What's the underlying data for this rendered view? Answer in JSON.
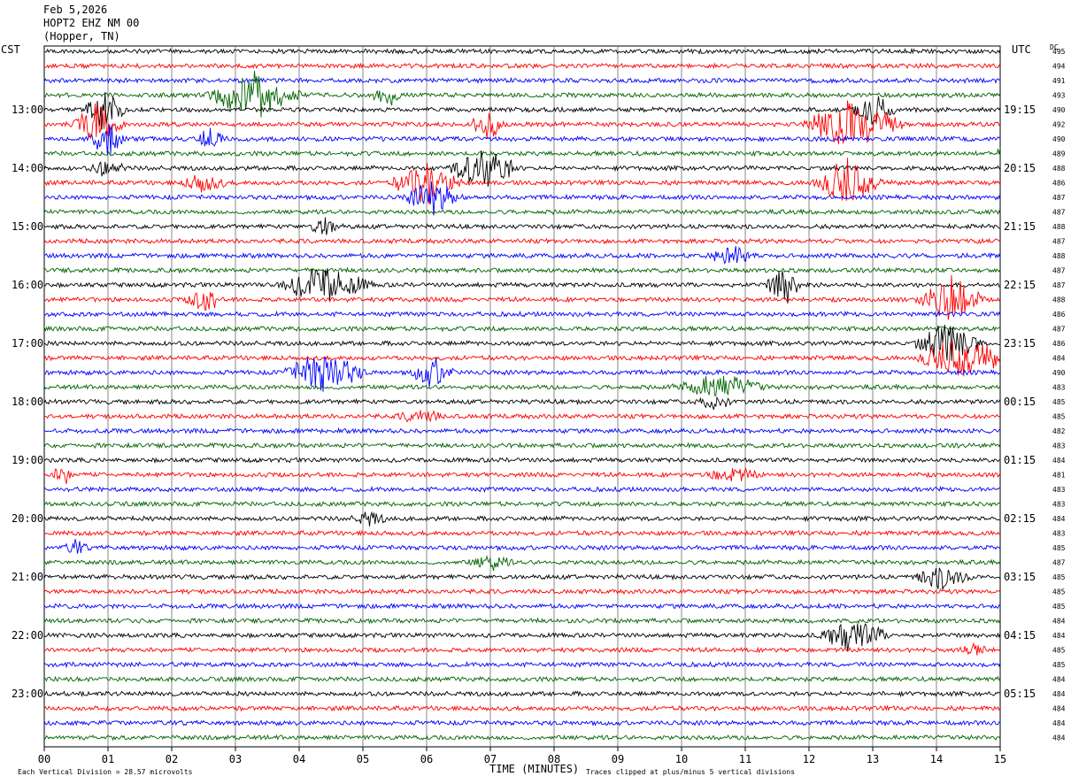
{
  "header": {
    "date": "Feb 5,2026",
    "station": "HOPT2 EHZ NM 00",
    "location": "(Hopper, TN)"
  },
  "left_timezone": "CST",
  "right_timezone": "UTC",
  "dc_label": "DC",
  "x_axis_title": "TIME (MINUTES)",
  "footer_left": "Each Vertical Division =   28.57 microvolts",
  "footer_right": "Traces clipped at plus/minus 5 vertical divisions",
  "colors": {
    "trace_cycle": [
      "#000000",
      "#ff0000",
      "#0000ff",
      "#006400"
    ],
    "grid": "#000000"
  },
  "chart_data": {
    "type": "line",
    "description_kind": "helicorder",
    "xlim": [
      0,
      15
    ],
    "x_ticks": [
      "00",
      "01",
      "02",
      "03",
      "04",
      "05",
      "06",
      "07",
      "08",
      "09",
      "10",
      "11",
      "12",
      "13",
      "14",
      "15"
    ],
    "left_time_labels": [
      "13:00",
      "14:00",
      "15:00",
      "16:00",
      "17:00",
      "18:00",
      "19:00",
      "20:00",
      "21:00",
      "22:00",
      "23:00"
    ],
    "right_time_labels": [
      "19:15",
      "20:15",
      "21:15",
      "22:15",
      "23:15",
      "00:15",
      "01:15",
      "02:15",
      "03:15",
      "04:15",
      "05:15"
    ],
    "trace_count": 48,
    "dc_values": [
      "495",
      "494",
      "491",
      "493",
      "490",
      "492",
      "490",
      "489",
      "488",
      "486",
      "487",
      "487",
      "488",
      "487",
      "488",
      "487",
      "487",
      "488",
      "486",
      "487",
      "486",
      "484",
      "490",
      "483",
      "485",
      "485",
      "482",
      "483",
      "484",
      "481",
      "483",
      "483",
      "484",
      "483",
      "485",
      "487",
      "485",
      "485",
      "485",
      "484",
      "484",
      "485",
      "485",
      "484",
      "484",
      "484",
      "484",
      "484"
    ],
    "events": [
      {
        "trace": 4,
        "minute": 0.95,
        "amp": 4.5,
        "dur": 0.35
      },
      {
        "trace": 5,
        "minute": 0.85,
        "amp": 4.5,
        "dur": 0.45
      },
      {
        "trace": 6,
        "minute": 1.0,
        "amp": 4.5,
        "dur": 0.3
      },
      {
        "trace": 8,
        "minute": 1.0,
        "amp": 2.0,
        "dur": 0.3
      },
      {
        "trace": 3,
        "minute": 3.3,
        "amp": 5.0,
        "dur": 0.8
      },
      {
        "trace": 6,
        "minute": 2.6,
        "amp": 2.0,
        "dur": 0.3
      },
      {
        "trace": 9,
        "minute": 2.5,
        "amp": 2.0,
        "dur": 0.4
      },
      {
        "trace": 3,
        "minute": 5.4,
        "amp": 2.0,
        "dur": 0.3
      },
      {
        "trace": 9,
        "minute": 6.0,
        "amp": 4.5,
        "dur": 0.6
      },
      {
        "trace": 10,
        "minute": 6.1,
        "amp": 3.5,
        "dur": 0.5
      },
      {
        "trace": 8,
        "minute": 6.9,
        "amp": 5.0,
        "dur": 0.6
      },
      {
        "trace": 5,
        "minute": 6.95,
        "amp": 3.0,
        "dur": 0.3
      },
      {
        "trace": 9,
        "minute": 12.6,
        "amp": 5.0,
        "dur": 0.6
      },
      {
        "trace": 5,
        "minute": 12.7,
        "amp": 5.0,
        "dur": 0.9
      },
      {
        "trace": 4,
        "minute": 13.0,
        "amp": 3.0,
        "dur": 0.4
      },
      {
        "trace": 7,
        "minute": 15.0,
        "amp": 2.5,
        "dur": 0.05
      },
      {
        "trace": 12,
        "minute": 4.4,
        "amp": 2.0,
        "dur": 0.3
      },
      {
        "trace": 16,
        "minute": 4.4,
        "amp": 4.0,
        "dur": 0.8
      },
      {
        "trace": 17,
        "minute": 2.5,
        "amp": 3.0,
        "dur": 0.3
      },
      {
        "trace": 16,
        "minute": 11.6,
        "amp": 4.5,
        "dur": 0.3
      },
      {
        "trace": 14,
        "minute": 10.8,
        "amp": 2.5,
        "dur": 0.4
      },
      {
        "trace": 17,
        "minute": 14.2,
        "amp": 5.0,
        "dur": 0.6
      },
      {
        "trace": 20,
        "minute": 14.2,
        "amp": 4.5,
        "dur": 0.6
      },
      {
        "trace": 21,
        "minute": 14.4,
        "amp": 4.5,
        "dur": 0.8
      },
      {
        "trace": 22,
        "minute": 4.4,
        "amp": 4.5,
        "dur": 0.7
      },
      {
        "trace": 22,
        "minute": 6.1,
        "amp": 3.0,
        "dur": 0.4
      },
      {
        "trace": 23,
        "minute": 10.6,
        "amp": 2.5,
        "dur": 0.8
      },
      {
        "trace": 24,
        "minute": 10.5,
        "amp": 1.8,
        "dur": 0.3
      },
      {
        "trace": 25,
        "minute": 5.9,
        "amp": 1.5,
        "dur": 0.4
      },
      {
        "trace": 29,
        "minute": 0.3,
        "amp": 2.0,
        "dur": 0.2
      },
      {
        "trace": 29,
        "minute": 10.8,
        "amp": 1.5,
        "dur": 0.5
      },
      {
        "trace": 32,
        "minute": 5.1,
        "amp": 1.5,
        "dur": 0.3
      },
      {
        "trace": 34,
        "minute": 0.5,
        "amp": 1.5,
        "dur": 0.2
      },
      {
        "trace": 35,
        "minute": 7.0,
        "amp": 1.5,
        "dur": 0.4
      },
      {
        "trace": 36,
        "minute": 14.1,
        "amp": 2.5,
        "dur": 0.5
      },
      {
        "trace": 40,
        "minute": 12.7,
        "amp": 3.5,
        "dur": 0.6
      },
      {
        "trace": 41,
        "minute": 14.6,
        "amp": 1.5,
        "dur": 0.25
      }
    ]
  }
}
